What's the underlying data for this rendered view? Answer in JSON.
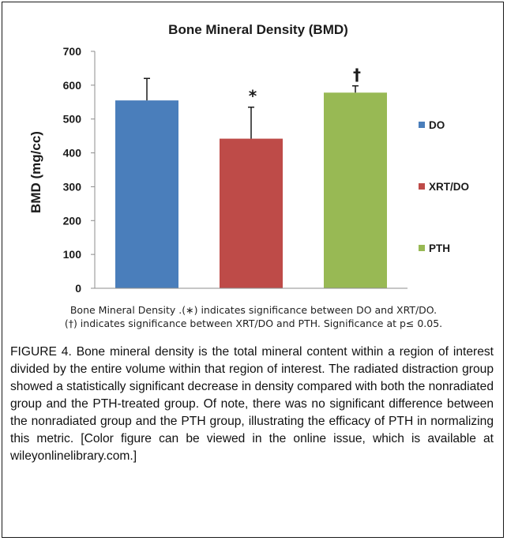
{
  "chart_data": {
    "type": "bar",
    "title": "Bone Mineral Density (BMD)",
    "xlabel": "",
    "ylabel": "BMD (mg/cc)",
    "ylim": [
      0,
      700
    ],
    "yticks": [
      0,
      100,
      200,
      300,
      400,
      500,
      600,
      700
    ],
    "grid": false,
    "legend_position": "right",
    "categories": [
      "DO",
      "XRT/DO",
      "PTH"
    ],
    "values": [
      555,
      442,
      578
    ],
    "error_upper": [
      620,
      535,
      598
    ],
    "colors": [
      "#4a7ebb",
      "#be4b48",
      "#98b954"
    ],
    "annotations": [
      "",
      "*",
      "†"
    ]
  },
  "caption_line1": "Bone Mineral Density .(∗) indicates significance between DO and XRT/DO.",
  "caption_line2": "(†) indicates significance between XRT/DO and PTH. Significance at p≤ 0.05.",
  "figure_caption": "FIGURE 4. Bone mineral density is the total mineral content within a region of interest divided by the entire volume within that region of interest. The radiated distraction group showed a statistically significant decrease in density compared with both the nonradiated group and the PTH-treated group. Of note, there was no significant difference between the nonradiated group and the PTH group, illustrating the efficacy of PTH in normalizing this metric. [Color figure can be viewed in the online issue, which is available at wileyonlinelibrary.com.]"
}
